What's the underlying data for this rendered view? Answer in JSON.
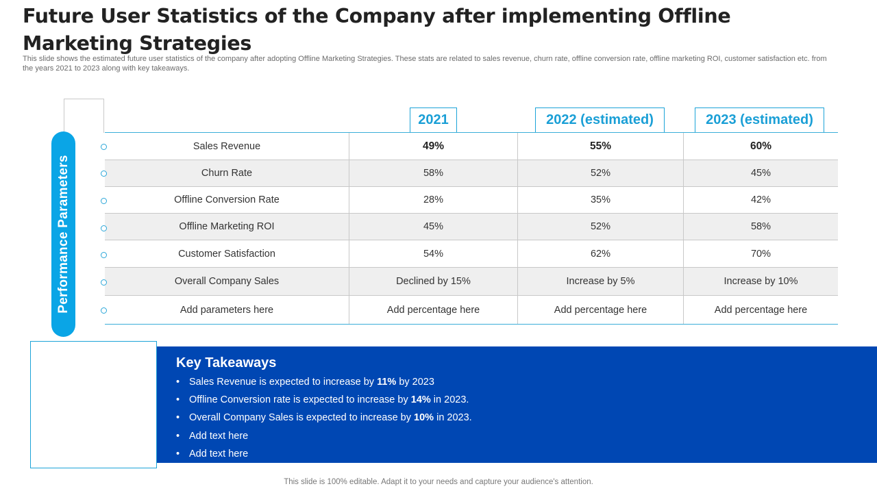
{
  "slide": {
    "title": "Future User Statistics of the Company after implementing Offline Marketing Strategies",
    "subtitle": "This slide shows the estimated future user statistics of the company after adopting Offline Marketing Strategies. These stats are related to sales revenue, churn rate, offline conversion rate, offline marketing ROI, customer satisfaction etc. from the years 2021 to 2023 along with key takeaways.",
    "footer": "This slide is 100% editable. Adapt it to your needs and capture your audience's attention."
  },
  "table": {
    "side_label": "Performance Parameters",
    "columns": [
      "2021",
      "2022 (estimated)",
      "2023 (estimated)"
    ],
    "rows": [
      {
        "param": "Sales Revenue",
        "values": [
          "49%",
          "55%",
          "60%"
        ]
      },
      {
        "param": "Churn Rate",
        "values": [
          "58%",
          "52%",
          "45%"
        ]
      },
      {
        "param": "Offline Conversion Rate",
        "values": [
          "28%",
          "35%",
          "42%"
        ]
      },
      {
        "param": "Offline Marketing  ROI",
        "values": [
          "45%",
          "52%",
          "58%"
        ]
      },
      {
        "param": "Customer Satisfaction",
        "values": [
          "54%",
          "62%",
          "70%"
        ]
      },
      {
        "param": "Overall Company Sales",
        "values": [
          "Declined by 15%",
          "Increase by 5%",
          "Increase by 10%"
        ]
      },
      {
        "param": "Add parameters here",
        "values": [
          "Add percentage here",
          "Add percentage here",
          "Add percentage here"
        ]
      }
    ]
  },
  "takeaways": {
    "title": "Key Takeaways",
    "bullet_symbol": "•",
    "items": [
      {
        "pre": "Sales Revenue is expected to increase by ",
        "bold": "11%",
        "post": " by 2023"
      },
      {
        "pre": "Offline Conversion rate is expected to increase by ",
        "bold": "14%",
        "post": " in 2023."
      },
      {
        "pre": "Overall Company Sales is expected to increase by ",
        "bold": "10%",
        "post": " in 2023."
      },
      {
        "pre": "Add text here",
        "bold": "",
        "post": ""
      },
      {
        "pre": "Add text here",
        "bold": "",
        "post": ""
      }
    ]
  },
  "colors": {
    "accent": "#0aa5e6",
    "panel": "#0047b3",
    "row_shade": "#efefef"
  }
}
